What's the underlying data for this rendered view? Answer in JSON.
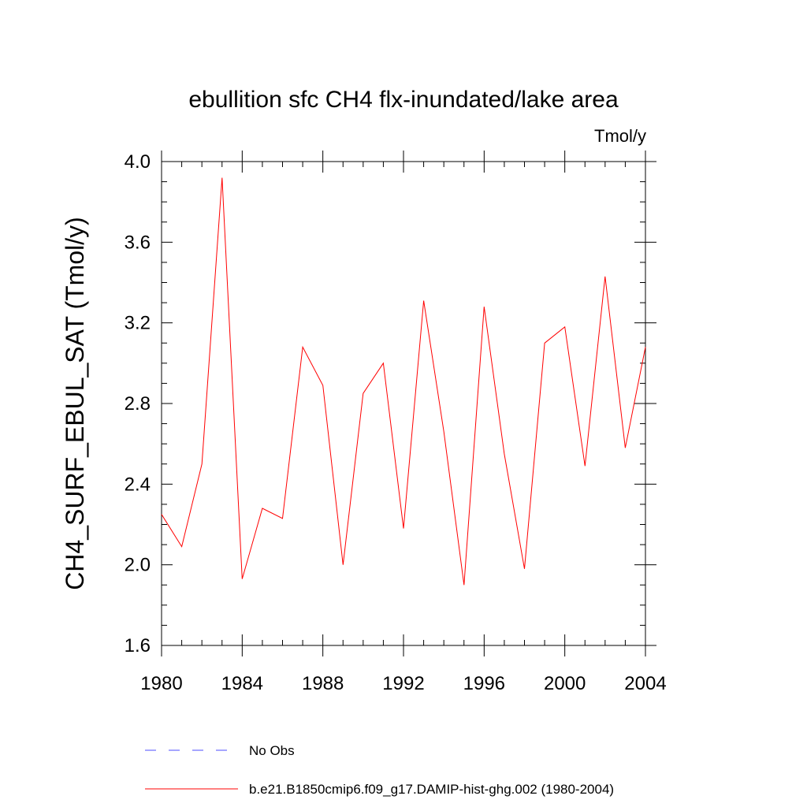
{
  "chart_data": {
    "type": "line",
    "title": "ebullition sfc CH4 flx-inundated/lake area",
    "units": "Tmol/y",
    "ylabel": "CH4_SURF_EBUL_SAT  (Tmol/y)",
    "xlabel": "",
    "xlim": [
      1980,
      2004
    ],
    "ylim": [
      1.6,
      4.0
    ],
    "x_ticks": [
      1980,
      1984,
      1988,
      1992,
      1996,
      2000,
      2004
    ],
    "x_tick_labels": [
      "1980",
      "1984",
      "1988",
      "1992",
      "1996",
      "2000",
      "2004"
    ],
    "y_ticks": [
      1.6,
      2.0,
      2.4,
      2.8,
      3.2,
      3.6,
      4.0
    ],
    "y_tick_labels": [
      "1.6",
      "2.0",
      "2.4",
      "2.8",
      "3.2",
      "3.6",
      "4.0"
    ],
    "grid": false,
    "legend_position": "bottom",
    "series": [
      {
        "name": "No Obs",
        "color": "#4c4cff",
        "dash": "dashed",
        "x": [],
        "values": []
      },
      {
        "name": "b.e21.B1850cmip6.f09_g17.DAMIP-hist-ghg.002 (1980-2004)",
        "color": "#ff0000",
        "dash": "solid",
        "x": [
          1980,
          1981,
          1982,
          1983,
          1984,
          1985,
          1986,
          1987,
          1988,
          1989,
          1990,
          1991,
          1992,
          1993,
          1994,
          1995,
          1996,
          1997,
          1998,
          1999,
          2000,
          2001,
          2002,
          2003,
          2004
        ],
        "values": [
          2.25,
          2.09,
          2.5,
          3.92,
          1.93,
          2.28,
          2.23,
          3.08,
          2.89,
          2.0,
          2.85,
          3.0,
          2.18,
          3.31,
          2.66,
          1.9,
          3.28,
          2.55,
          1.98,
          3.1,
          3.18,
          2.49,
          3.43,
          2.58,
          3.08
        ]
      }
    ]
  }
}
